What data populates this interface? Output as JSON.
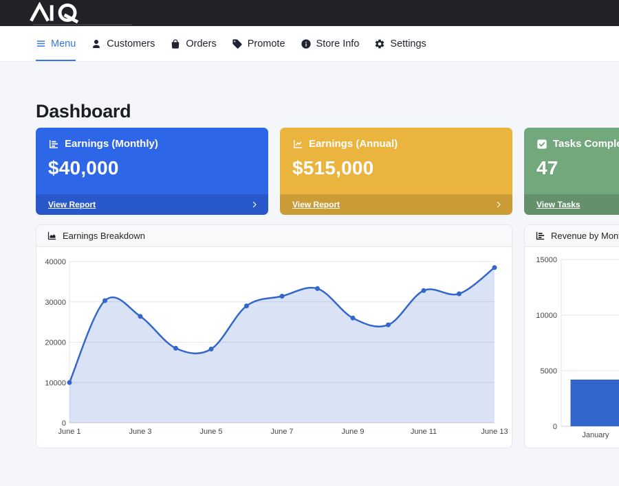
{
  "nav": {
    "items": [
      {
        "label": "Menu",
        "icon": "menu-icon",
        "active": true
      },
      {
        "label": "Customers",
        "icon": "user-icon",
        "active": false
      },
      {
        "label": "Orders",
        "icon": "bag-icon",
        "active": false
      },
      {
        "label": "Promote",
        "icon": "tag-icon",
        "active": false
      },
      {
        "label": "Store Info",
        "icon": "info-icon",
        "active": false
      },
      {
        "label": "Settings",
        "icon": "gear-icon",
        "active": false
      }
    ],
    "active_color": "#3874e8"
  },
  "page": {
    "title": "Dashboard"
  },
  "stat_cards": [
    {
      "title": "Earnings (Monthly)",
      "value": "$40,000",
      "link": "View Report",
      "color": "#2e66e8",
      "icon": "chart-bar-icon"
    },
    {
      "title": "Earnings (Annual)",
      "value": "$515,000",
      "link": "View Report",
      "color": "#eab43e",
      "icon": "chart-line-icon"
    },
    {
      "title": "Tasks Completed",
      "value": "47",
      "link": "View Tasks",
      "color": "#73a77c",
      "icon": "check-square-icon"
    }
  ],
  "chart_data": [
    {
      "type": "area",
      "title": "Earnings Breakdown",
      "x": [
        "June 1",
        "June 2",
        "June 3",
        "June 4",
        "June 5",
        "June 6",
        "June 7",
        "June 8",
        "June 9",
        "June 10",
        "June 11",
        "June 12",
        "June 13"
      ],
      "values": [
        10000,
        30300,
        26400,
        18500,
        18300,
        29000,
        31400,
        33300,
        26000,
        24300,
        32800,
        32000,
        38500
      ],
      "xtick_shown": [
        "June 1",
        "June 3",
        "June 5",
        "June 7",
        "June 9",
        "June 11",
        "June 13"
      ],
      "yticks": [
        0,
        10000,
        20000,
        30000,
        40000
      ],
      "ylim": [
        0,
        40000
      ],
      "line_color": "#3366cc",
      "fill_color": "rgba(51,102,204,0.18)",
      "grid": true,
      "legend": "none"
    },
    {
      "type": "bar",
      "title": "Revenue by Month",
      "categories": [
        "January"
      ],
      "values": [
        4200
      ],
      "yticks": [
        0,
        5000,
        10000,
        15000
      ],
      "ylim": [
        0,
        15000
      ],
      "bar_color": "#3366cc",
      "grid": true,
      "legend": "none"
    }
  ]
}
